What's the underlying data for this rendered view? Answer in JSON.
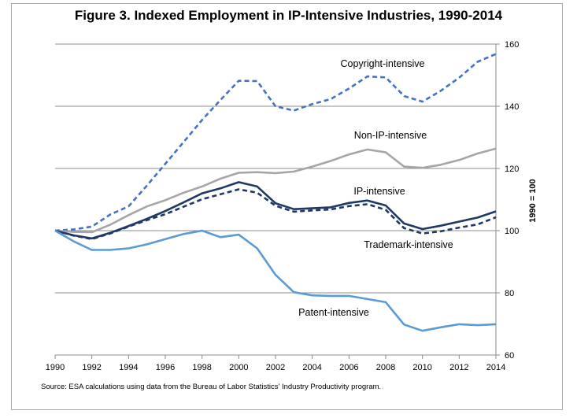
{
  "title": "Figure 3.  Indexed Employment in IP-Intensive Industries, 1990-2014",
  "source": "Source: ESA calculations using data from the Bureau of Labor Statistics' Industry Productivity program.",
  "chart_data": {
    "type": "line",
    "title": "Figure 3.  Indexed Employment in IP-Intensive Industries, 1990-2014",
    "xlabel": "",
    "ylabel": "1990 = 100",
    "xlim": [
      1990,
      2014
    ],
    "ylim": [
      60,
      160
    ],
    "x_ticks": [
      1990,
      1992,
      1994,
      1996,
      1998,
      2000,
      2002,
      2004,
      2006,
      2008,
      2010,
      2012,
      2014
    ],
    "y_ticks": [
      60,
      80,
      100,
      120,
      140,
      160
    ],
    "y_axis_side": "right",
    "grid": "horizontal",
    "legend": "direct labels",
    "x": [
      1990,
      1991,
      1992,
      1993,
      1994,
      1995,
      1996,
      1997,
      1998,
      1999,
      2000,
      2001,
      2002,
      2003,
      2004,
      2005,
      2006,
      2007,
      2008,
      2009,
      2010,
      2011,
      2012,
      2013,
      2014
    ],
    "series": [
      {
        "name": "Copyright-intensive",
        "color": "#4472c4",
        "dash": "dashed",
        "values": [
          100,
          100.4,
          101.3,
          105.2,
          107.8,
          114.5,
          121.5,
          128.5,
          135.6,
          142.0,
          148.2,
          148.1,
          140.0,
          138.6,
          140.7,
          142.3,
          145.7,
          149.6,
          149.3,
          143.3,
          141.5,
          145.0,
          149.2,
          154.3,
          156.8
        ]
      },
      {
        "name": "Non-IP-intensive",
        "color": "#a6a6a6",
        "dash": "solid",
        "values": [
          100,
          99.6,
          99.5,
          101.9,
          105.0,
          107.8,
          109.8,
          112.2,
          114.2,
          116.7,
          118.6,
          118.8,
          118.5,
          119.0,
          120.6,
          122.4,
          124.5,
          126.1,
          125.2,
          120.6,
          120.2,
          121.2,
          122.7,
          124.8,
          126.4
        ]
      },
      {
        "name": "IP-intensive",
        "color": "#1f3864",
        "dash": "solid",
        "values": [
          100,
          98.5,
          97.5,
          99.3,
          101.5,
          103.8,
          106.3,
          109.1,
          112.0,
          113.6,
          115.6,
          114.2,
          108.8,
          106.9,
          107.2,
          107.5,
          108.9,
          109.7,
          108.1,
          102.3,
          100.5,
          101.6,
          102.9,
          104.2,
          106.2
        ]
      },
      {
        "name": "Trademark-intensive",
        "color": "#1f3864",
        "dash": "dashed",
        "values": [
          100,
          98.4,
          97.3,
          99.1,
          101.3,
          103.4,
          105.3,
          107.7,
          110.1,
          111.7,
          113.3,
          112.2,
          108.0,
          106.1,
          106.5,
          106.8,
          107.9,
          108.5,
          106.7,
          100.8,
          99.1,
          99.8,
          101.0,
          102.0,
          104.3
        ]
      },
      {
        "name": "Patent-intensive",
        "color": "#5b9bd5",
        "dash": "solid",
        "values": [
          100,
          96.6,
          93.8,
          93.8,
          94.3,
          95.6,
          97.3,
          98.9,
          100.0,
          97.9,
          98.7,
          94.3,
          85.8,
          80.2,
          79.2,
          79.0,
          79.0,
          78.0,
          77.0,
          69.8,
          67.8,
          68.9,
          69.9,
          69.6,
          69.9
        ]
      }
    ]
  }
}
